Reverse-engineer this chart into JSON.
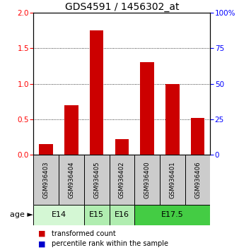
{
  "title": "GDS4591 / 1456302_at",
  "samples": [
    "GSM936403",
    "GSM936404",
    "GSM936405",
    "GSM936402",
    "GSM936400",
    "GSM936401",
    "GSM936406"
  ],
  "transformed_count": [
    0.15,
    0.7,
    1.75,
    0.22,
    1.3,
    1.0,
    0.52
  ],
  "percentile_rank": [
    0.06,
    0.1,
    0.22,
    0.05,
    0.15,
    0.1,
    0.08
  ],
  "age_groups": [
    {
      "label": "E14",
      "start": 0,
      "end": 2,
      "color": "#d4f7d4"
    },
    {
      "label": "E15",
      "start": 2,
      "end": 3,
      "color": "#b0edb0"
    },
    {
      "label": "E16",
      "start": 3,
      "end": 4,
      "color": "#b0edb0"
    },
    {
      "label": "E17.5",
      "start": 4,
      "end": 7,
      "color": "#44cc44"
    }
  ],
  "ylim_left": [
    0,
    2
  ],
  "ylim_right": [
    0,
    100
  ],
  "yticks_left": [
    0,
    0.5,
    1.0,
    1.5,
    2.0
  ],
  "yticks_right": [
    0,
    25,
    50,
    75,
    100
  ],
  "bar_color_red": "#cc0000",
  "bar_color_blue": "#0000cc",
  "bar_width": 0.55,
  "sample_box_color": "#cccccc",
  "legend_red_label": "transformed count",
  "legend_blue_label": "percentile rank within the sample",
  "age_label": "age ►",
  "title_fontsize": 10,
  "tick_fontsize": 7.5,
  "label_fontsize": 7.5
}
